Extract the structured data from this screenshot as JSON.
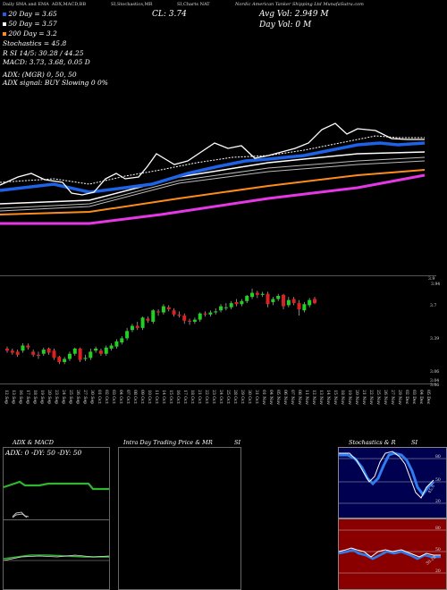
{
  "header": {
    "part1": "Daily SMA and EMA",
    "part2": "ADX,MACD,BB",
    "part3": "SI,Stochastics,MR",
    "part4": "SI,Charts NAT",
    "part5": "Nordic American Tanker Shipping Ltd MunafaSutra.com"
  },
  "legend": {
    "line1": "20  Day = 3.65",
    "line2": "50  Day = 3.57",
    "line3": "200  Day = 3.2",
    "line4": "Stochastics = 45.8",
    "line5": "R     SI 14/5: 30.28 / 44.25",
    "line6": "MACD: 3.73, 3.68, 0.05 D",
    "line7": "ADX:                    (MGR) 0,  50,   50",
    "line8": "ADX  signal:                      BUY Slowing 0 0%"
  },
  "quote": {
    "close": "CL: 3.74",
    "avg_vol": "Avg Vol: 2.949  M",
    "day_vol": "Day Vol: 0   M"
  },
  "price_ticks": [
    "3.9",
    "3.94",
    "3.7",
    "3.39",
    "3.06",
    "3.04",
    "3.06"
  ],
  "x_ticks": [
    "12 Sep",
    "13 Sep",
    "16 Sep",
    "17 Sep",
    "18 Sep",
    "19 Sep",
    "20 Sep",
    "23 Sep",
    "24 Sep",
    "25 Sep",
    "26 Sep",
    "27 Sep",
    "30 Sep",
    "01 Oct",
    "02 Oct",
    "03 Oct",
    "04 Oct",
    "07 Oct",
    "08 Oct",
    "09 Oct",
    "10 Oct",
    "11 Oct",
    "14 Oct",
    "15 Oct",
    "16 Oct",
    "17 Oct",
    "18 Oct",
    "21 Oct",
    "22 Oct",
    "23 Oct",
    "24 Oct",
    "25 Oct",
    "28 Oct",
    "29 Oct",
    "30 Oct",
    "31 Oct",
    "01 Nov",
    "04 Nov",
    "05 Nov",
    "06 Nov",
    "07 Nov",
    "08 Nov",
    "11 Nov",
    "12 Nov",
    "13 Nov",
    "14 Nov",
    "15 Nov",
    "18 Nov",
    "19 Nov",
    "20 Nov",
    "21 Nov",
    "22 Nov",
    "25 Nov",
    "26 Nov",
    "27 Nov",
    "29 Nov",
    "02 Dec",
    "03 Dec",
    "04 Dec",
    "05 Dec"
  ],
  "panels": {
    "adx_title": "ADX  & MACD",
    "adx_label": "ADX: 0  -DY: 50  -DY: 50",
    "intraday_title": "Intra  Day Trading Price  & MR",
    "intraday_si": "SI",
    "stoch_title": "Stochastics & R",
    "stoch_si": "SI",
    "stoch_ticks": [
      "80",
      "50",
      "20"
    ],
    "stoch_value": "45.8",
    "rsi_ticks": [
      "80",
      "50",
      "20"
    ],
    "rsi_value": "30.28"
  },
  "chart_data": [
    {
      "type": "line",
      "title": "Daily SMA and EMA",
      "series": [
        {
          "name": "20  Day",
          "color": "#1e62e6"
        },
        {
          "name": "50  Day",
          "color": "#ffffff"
        },
        {
          "name": "200  Day",
          "color": "#ff8c1a"
        }
      ],
      "ema_colors": [
        "#ffffff",
        "#e637e6"
      ]
    },
    {
      "type": "candlestick",
      "x": [
        "12 Sep",
        "13 Sep",
        "16 Sep",
        "17 Sep",
        "18 Sep",
        "19 Sep",
        "20 Sep",
        "23 Sep",
        "24 Sep",
        "25 Sep",
        "26 Sep",
        "27 Sep",
        "30 Sep",
        "01 Oct",
        "02 Oct",
        "03 Oct",
        "04 Oct",
        "07 Oct",
        "08 Oct",
        "09 Oct",
        "10 Oct",
        "11 Oct",
        "14 Oct",
        "15 Oct",
        "16 Oct",
        "17 Oct",
        "18 Oct",
        "21 Oct",
        "22 Oct",
        "23 Oct",
        "24 Oct",
        "25 Oct",
        "28 Oct",
        "29 Oct",
        "30 Oct",
        "31 Oct",
        "01 Nov",
        "04 Nov",
        "05 Nov",
        "06 Nov",
        "07 Nov",
        "08 Nov",
        "11 Nov",
        "12 Nov",
        "13 Nov",
        "14 Nov",
        "15 Nov",
        "18 Nov",
        "19 Nov",
        "20 Nov",
        "21 Nov",
        "22 Nov",
        "25 Nov",
        "26 Nov",
        "27 Nov",
        "29 Nov",
        "02 Dec",
        "03 Dec",
        "04 Dec",
        "05 Dec"
      ],
      "open": [
        3.3,
        3.28,
        3.27,
        3.28,
        3.33,
        3.27,
        3.24,
        3.25,
        3.3,
        3.28,
        3.22,
        3.17,
        3.2,
        3.25,
        3.3,
        3.2,
        3.21,
        3.28,
        3.28,
        3.25,
        3.3,
        3.32,
        3.36,
        3.4,
        3.48,
        3.52,
        3.5,
        3.59,
        3.56,
        3.66,
        3.65,
        3.7,
        3.67,
        3.63,
        3.62,
        3.57,
        3.56,
        3.58,
        3.64,
        3.63,
        3.65,
        3.67,
        3.7,
        3.7,
        3.75,
        3.73,
        3.76,
        3.8,
        3.84,
        3.82,
        3.83,
        3.75,
        3.78,
        3.82,
        3.72,
        3.78,
        3.74,
        3.67,
        3.72,
        3.78
      ],
      "close": [
        3.28,
        3.26,
        3.24,
        3.33,
        3.31,
        3.24,
        3.23,
        3.29,
        3.26,
        3.21,
        3.17,
        3.2,
        3.25,
        3.3,
        3.19,
        3.21,
        3.27,
        3.3,
        3.25,
        3.31,
        3.33,
        3.37,
        3.4,
        3.47,
        3.52,
        3.5,
        3.6,
        3.57,
        3.67,
        3.65,
        3.71,
        3.68,
        3.63,
        3.62,
        3.57,
        3.56,
        3.58,
        3.64,
        3.63,
        3.65,
        3.66,
        3.71,
        3.7,
        3.74,
        3.73,
        3.76,
        3.81,
        3.84,
        3.82,
        3.83,
        3.73,
        3.78,
        3.81,
        3.71,
        3.77,
        3.74,
        3.68,
        3.73,
        3.77,
        3.74
      ],
      "high": [
        3.32,
        3.3,
        3.29,
        3.35,
        3.35,
        3.29,
        3.27,
        3.31,
        3.31,
        3.3,
        3.23,
        3.22,
        3.27,
        3.31,
        3.31,
        3.24,
        3.3,
        3.32,
        3.3,
        3.33,
        3.35,
        3.39,
        3.42,
        3.5,
        3.54,
        3.56,
        3.61,
        3.61,
        3.68,
        3.68,
        3.73,
        3.72,
        3.69,
        3.66,
        3.64,
        3.59,
        3.6,
        3.65,
        3.66,
        3.67,
        3.69,
        3.73,
        3.74,
        3.76,
        3.78,
        3.78,
        3.82,
        3.88,
        3.86,
        3.85,
        3.85,
        3.8,
        3.83,
        3.83,
        3.8,
        3.8,
        3.77,
        3.75,
        3.79,
        3.8
      ],
      "low": [
        3.26,
        3.24,
        3.22,
        3.26,
        3.29,
        3.22,
        3.2,
        3.23,
        3.24,
        3.19,
        3.15,
        3.15,
        3.18,
        3.23,
        3.17,
        3.18,
        3.19,
        3.26,
        3.23,
        3.23,
        3.28,
        3.3,
        3.34,
        3.38,
        3.46,
        3.48,
        3.48,
        3.55,
        3.54,
        3.62,
        3.63,
        3.66,
        3.61,
        3.6,
        3.54,
        3.53,
        3.54,
        3.56,
        3.61,
        3.61,
        3.63,
        3.65,
        3.67,
        3.68,
        3.71,
        3.71,
        3.74,
        3.78,
        3.79,
        3.8,
        3.7,
        3.72,
        3.76,
        3.68,
        3.7,
        3.72,
        3.62,
        3.65,
        3.7,
        3.73
      ]
    }
  ]
}
